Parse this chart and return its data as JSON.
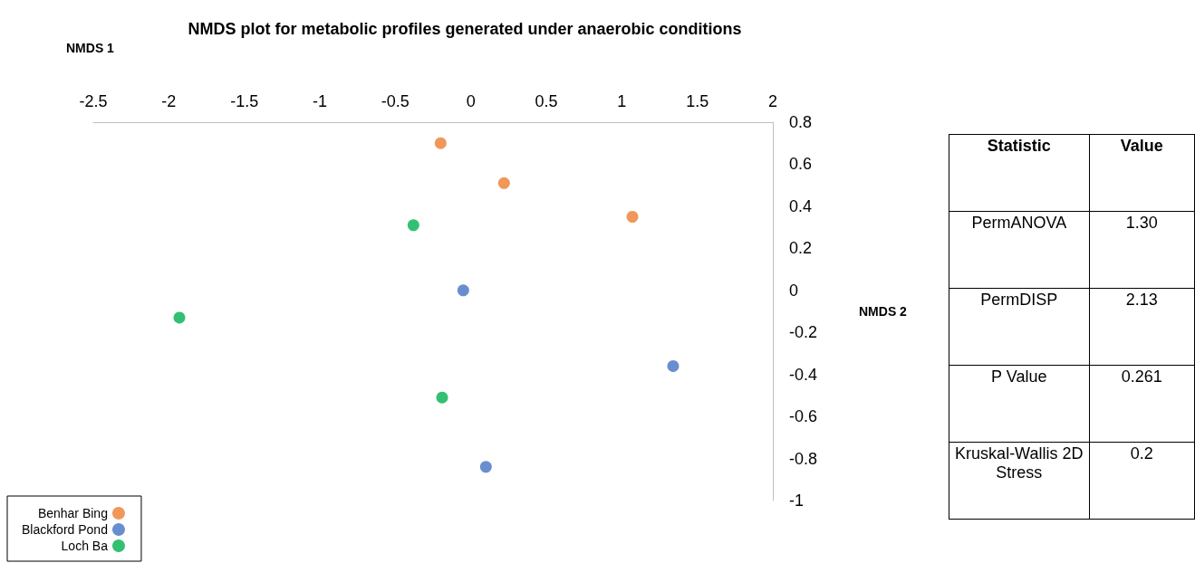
{
  "chart_data": {
    "type": "scatter",
    "title": "NMDS plot for metabolic profiles generated under anaerobic conditions",
    "xlabel": "NMDS 1",
    "ylabel": "NMDS 2",
    "series": [
      {
        "name": "Benhar Bing",
        "color": "#ed7d31",
        "x": [
          -0.2,
          0.22,
          1.07
        ],
        "values": [
          0.7,
          0.51,
          0.35
        ]
      },
      {
        "name": "Blackford Pond",
        "color": "#4472c4",
        "x": [
          -0.05,
          1.34,
          0.1
        ],
        "values": [
          0,
          -0.36,
          -0.84
        ]
      },
      {
        "name": "Loch Ba",
        "color": "#00b050",
        "x": [
          -0.38,
          -1.93,
          -0.19
        ],
        "values": [
          0.31,
          -0.13,
          -0.51
        ]
      }
    ],
    "xlim": [
      -2.5,
      2
    ],
    "xticks": [
      -2.5,
      -2,
      -1.5,
      -1,
      -0.5,
      0,
      0.5,
      1,
      1.5,
      2
    ],
    "ylim": [
      -1,
      0.8
    ],
    "yticks": [
      -1,
      -0.8,
      -0.6,
      -0.4,
      -0.2,
      0,
      0.2,
      0.4,
      0.6,
      0.8
    ],
    "grid": false,
    "legend": "bottom left",
    "marker": "circle",
    "annotations": [
      "Statistic",
      "Value",
      "PermANOVA",
      "1.30",
      "PermDISP",
      "2.13",
      "P Value",
      "0.261",
      "Kruskal-Wallis 2D Stress",
      "0.2"
    ]
  }
}
